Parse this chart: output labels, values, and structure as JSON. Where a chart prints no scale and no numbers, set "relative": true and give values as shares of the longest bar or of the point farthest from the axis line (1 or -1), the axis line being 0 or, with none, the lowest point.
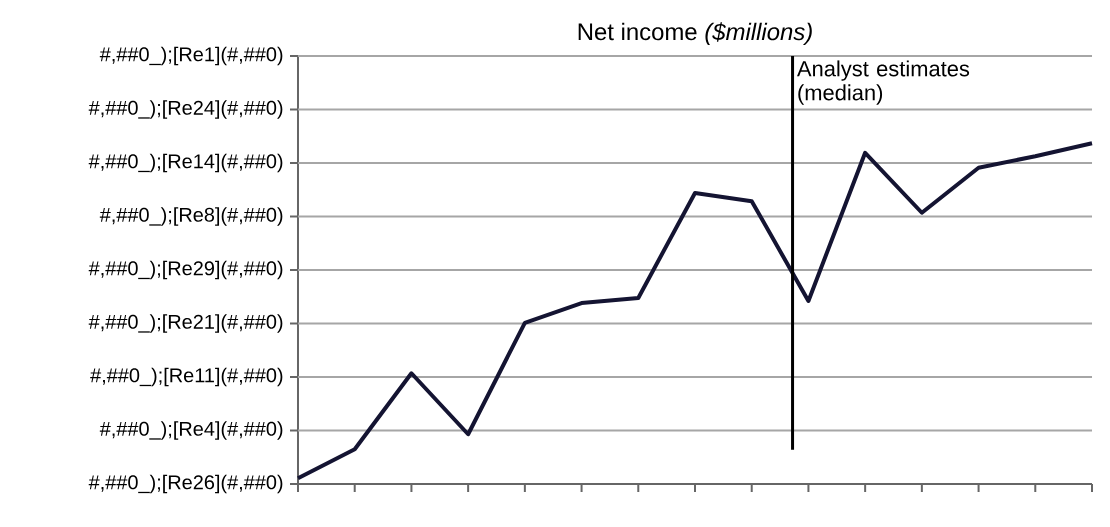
{
  "chart_data": {
    "type": "line",
    "title": "Net income *($millions)*",
    "relative": true,
    "categories": [
      null,
      null,
      null,
      null,
      null,
      null,
      null,
      null,
      null,
      null,
      null,
      null,
      null,
      null,
      null
    ],
    "series": [
      {
        "color": "#141432",
        "values": [
          0.017,
          0.102,
          0.325,
          0.146,
          0.473,
          0.531,
          0.546,
          0.854,
          0.83,
          0.537,
          0.972,
          0.796,
          0.928,
          0.962,
          1
        ]
      }
    ],
    "annotations": [
      "#,##0_);[Re26](#,##0)",
      "#,##0_);[Re4](#,##0)",
      "#,##0_);[Re11](#,##0)",
      "#,##0_);[Re21](#,##0)",
      "#,##0_);[Re29](#,##0)",
      "#,##0_);[Re8](#,##0)",
      "#,##0_);[Re14](#,##0)",
      "#,##0_);[Re24](#,##0)",
      "#,##0_);[Re1](#,##0)",
      "Analyst estimates (median)"
    ],
    "grid": "y",
    "marker": "none",
    "line_style": "solid"
  }
}
